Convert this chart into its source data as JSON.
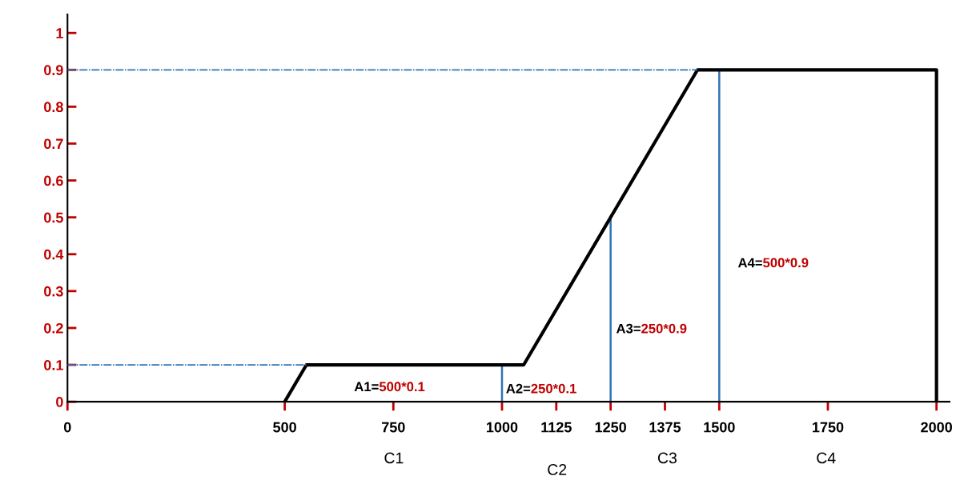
{
  "chart_data": {
    "type": "line",
    "xlim": [
      0,
      2030
    ],
    "ylim": [
      0,
      1.05
    ],
    "xticks": [
      0,
      500,
      750,
      1000,
      1125,
      1250,
      1375,
      1500,
      1750,
      2000
    ],
    "yticks": [
      0,
      0.1,
      0.2,
      0.3,
      0.4,
      0.5,
      0.6,
      0.7,
      0.8,
      0.9,
      1
    ],
    "grid": false,
    "marker": "none",
    "series": [
      {
        "color": "#000000",
        "x": [
          500,
          550,
          1050,
          1450,
          2000,
          2000
        ],
        "values": [
          0,
          0.1,
          0.1,
          0.9,
          0.9,
          0
        ]
      },
      {
        "color": "#2e75b6",
        "x": [
          1000,
          1000
        ],
        "values": [
          0,
          0.1
        ]
      },
      {
        "color": "#2e75b6",
        "x": [
          1250,
          1250
        ],
        "values": [
          0,
          0.5
        ]
      },
      {
        "color": "#2e75b6",
        "x": [
          1500,
          1500
        ],
        "values": [
          0,
          0.9
        ]
      },
      {
        "color": "#2e75b6",
        "line_style": "dashed",
        "x": [
          0,
          550
        ],
        "values": [
          0.1,
          0.1
        ]
      },
      {
        "color": "#2e75b6",
        "line_style": "dashed",
        "x": [
          0,
          1450
        ],
        "values": [
          0.9,
          0.9
        ]
      }
    ],
    "annotations": [
      "A1=500*0.1",
      "A2=250*0.1",
      "A3=250*0.9",
      "A4=500*0.9",
      "C1",
      "C2",
      "C3",
      "C4"
    ]
  }
}
